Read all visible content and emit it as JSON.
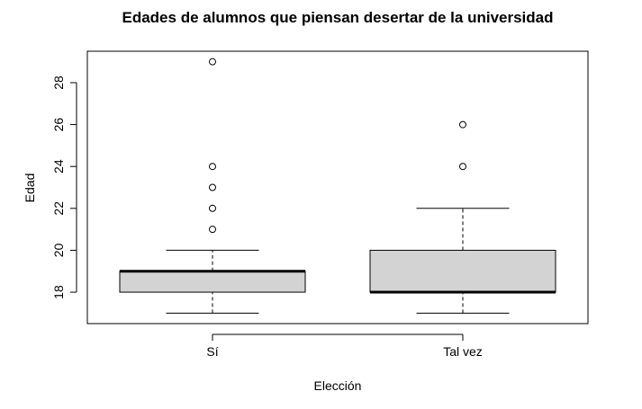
{
  "chart_data": {
    "type": "boxplot",
    "title": "Edades de alumnos que piensan desertar de la universidad",
    "xlabel": "Elección",
    "ylabel": "Edad",
    "categories": [
      "Sí",
      "Tal vez"
    ],
    "ylim": [
      16.5,
      29.5
    ],
    "yticks": [
      18,
      20,
      22,
      24,
      26,
      28
    ],
    "ytick_labels": [
      "18",
      "20",
      "22",
      "24",
      "26",
      "28"
    ],
    "grid": false,
    "legend": "none",
    "box_fill": "#d3d3d3",
    "series": [
      {
        "category": "Sí",
        "whisker_low": 17,
        "q1": 18,
        "median": 19,
        "q3": 19,
        "whisker_high": 20,
        "outliers": [
          21,
          22,
          23,
          24,
          29
        ]
      },
      {
        "category": "Tal vez",
        "whisker_low": 17,
        "q1": 18,
        "median": 18,
        "q3": 20,
        "whisker_high": 22,
        "outliers": [
          24,
          26
        ]
      }
    ]
  }
}
